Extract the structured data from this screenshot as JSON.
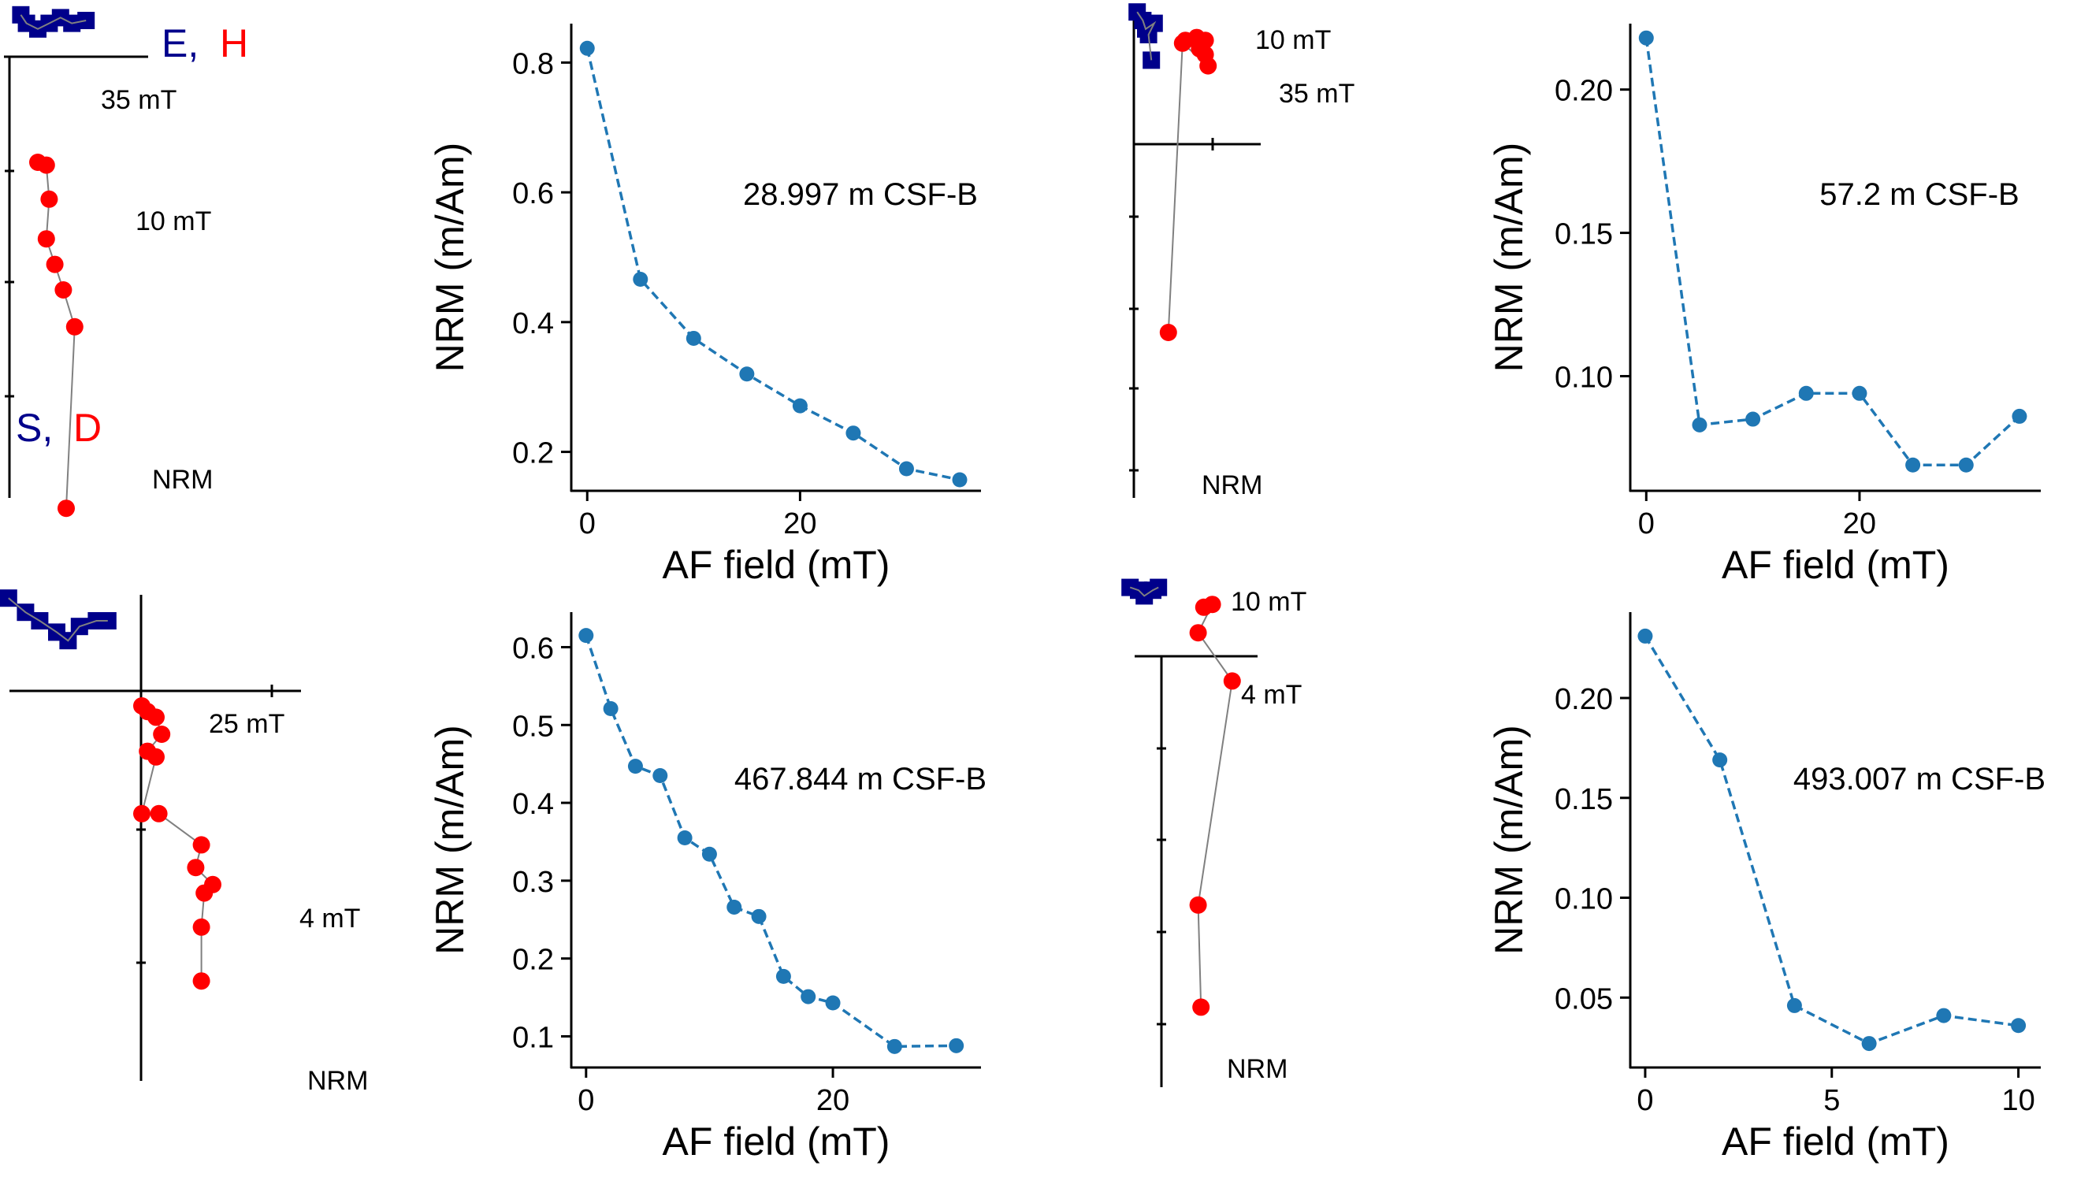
{
  "colors": {
    "demag_line": "#1f77b4",
    "zij_horizontal": "#00008b",
    "zij_vertical": "#ff0000",
    "zij_path": "#808080",
    "axis": "#000000"
  },
  "zijderveld_legend": {
    "horizontal_axis_label": "E,",
    "horizontal_axis_label_2": "H",
    "vertical_axis_label": "S,",
    "vertical_axis_label_2": "D"
  },
  "chart_data": [
    {
      "type": "line",
      "title": "",
      "annotation": "28.997 m CSF-B",
      "xlabel": "AF field (mT)",
      "ylabel": "NRM (m/Am)",
      "x": [
        0,
        5,
        10,
        15,
        20,
        25,
        30,
        35
      ],
      "values": [
        0.822,
        0.466,
        0.375,
        0.32,
        0.271,
        0.229,
        0.174,
        0.157
      ],
      "xlim": [
        -1.5,
        37
      ],
      "ylim": [
        0.14,
        0.86
      ],
      "xticks": [
        0,
        20
      ],
      "yticks": [
        0.2,
        0.4,
        0.6,
        0.8
      ],
      "ytick_labels": [
        "0.2",
        "0.4",
        "0.6",
        "0.8"
      ]
    },
    {
      "type": "line",
      "title": "",
      "annotation": "57.2 m CSF-B",
      "xlabel": "AF field (mT)",
      "ylabel": "NRM (m/Am)",
      "x": [
        0,
        5,
        10,
        15,
        20,
        25,
        30,
        35
      ],
      "values": [
        0.218,
        0.083,
        0.085,
        0.094,
        0.094,
        0.069,
        0.069,
        0.086
      ],
      "xlim": [
        -1.5,
        37
      ],
      "ylim": [
        0.06,
        0.223
      ],
      "xticks": [
        0,
        20
      ],
      "yticks": [
        0.1,
        0.15,
        0.2
      ],
      "ytick_labels": [
        "0.10",
        "0.15",
        "0.20"
      ]
    },
    {
      "type": "line",
      "title": "",
      "annotation": "467.844 m CSF-B",
      "xlabel": "AF field (mT)",
      "ylabel": "NRM (m/Am)",
      "x": [
        0,
        2,
        4,
        6,
        8,
        10,
        12,
        14,
        16,
        18,
        20,
        25,
        30
      ],
      "values": [
        0.615,
        0.521,
        0.447,
        0.435,
        0.355,
        0.334,
        0.266,
        0.254,
        0.177,
        0.151,
        0.143,
        0.087,
        0.088
      ],
      "xlim": [
        -1.2,
        32
      ],
      "ylim": [
        0.06,
        0.645
      ],
      "xticks": [
        0,
        20
      ],
      "yticks": [
        0.1,
        0.2,
        0.3,
        0.4,
        0.5,
        0.6
      ],
      "ytick_labels": [
        "0.1",
        "0.2",
        "0.3",
        "0.4",
        "0.5",
        "0.6"
      ]
    },
    {
      "type": "line",
      "title": "",
      "annotation": "493.007 m CSF-B",
      "xlabel": "AF field (mT)",
      "ylabel": "NRM (m/Am)",
      "x": [
        0,
        2,
        4,
        6,
        8,
        10
      ],
      "values": [
        0.231,
        0.169,
        0.046,
        0.027,
        0.041,
        0.036
      ],
      "xlim": [
        -0.4,
        10.6
      ],
      "ylim": [
        0.015,
        0.243
      ],
      "xticks": [
        0,
        5,
        10
      ],
      "yticks": [
        0.05,
        0.1,
        0.15,
        0.2
      ],
      "ytick_labels": [
        "0.05",
        "0.10",
        "0.15",
        "0.20"
      ]
    }
  ],
  "zijderveld": [
    {
      "step_labels": [
        "35 mT",
        "10 mT",
        "NRM"
      ],
      "horizontal_points": [
        [
          0.04,
          0.03
        ],
        [
          0.06,
          0.06
        ],
        [
          0.1,
          0.08
        ],
        [
          0.14,
          0.06
        ],
        [
          0.18,
          0.04
        ],
        [
          0.22,
          0.06
        ],
        [
          0.27,
          0.05
        ]
      ],
      "vertical_points": [
        [
          0.1,
          0.55
        ],
        [
          0.13,
          0.56
        ],
        [
          0.14,
          0.68
        ],
        [
          0.13,
          0.82
        ],
        [
          0.16,
          0.91
        ],
        [
          0.19,
          1.0
        ],
        [
          0.23,
          1.13
        ],
        [
          0.2,
          1.77
        ]
      ]
    },
    {
      "step_labels": [
        "10 mT",
        "35 mT",
        "NRM"
      ],
      "horizontal_points": [
        [
          0.02,
          0.02
        ],
        [
          0.04,
          0.05
        ],
        [
          0.05,
          0.08
        ],
        [
          0.08,
          0.06
        ],
        [
          0.06,
          0.1
        ],
        [
          0.07,
          0.19
        ]
      ],
      "vertical_points": [
        [
          0.19,
          0.12
        ],
        [
          0.23,
          0.11
        ],
        [
          0.26,
          0.12
        ],
        [
          0.24,
          0.15
        ],
        [
          0.26,
          0.17
        ],
        [
          0.27,
          0.21
        ],
        [
          0.18,
          0.13
        ],
        [
          0.13,
          1.15
        ]
      ]
    },
    {
      "step_labels": [
        "25 mT",
        "4 mT",
        "NRM"
      ],
      "horizontal_points": [
        [
          0.03,
          0.22
        ],
        [
          0.09,
          0.27
        ],
        [
          0.14,
          0.3
        ],
        [
          0.2,
          0.34
        ],
        [
          0.24,
          0.37
        ],
        [
          0.28,
          0.32
        ],
        [
          0.34,
          0.3
        ],
        [
          0.38,
          0.3
        ]
      ],
      "vertical_points": [
        [
          0.5,
          0.6
        ],
        [
          0.52,
          0.62
        ],
        [
          0.55,
          0.64
        ],
        [
          0.57,
          0.7
        ],
        [
          0.52,
          0.76
        ],
        [
          0.55,
          0.78
        ],
        [
          0.5,
          0.98
        ],
        [
          0.56,
          0.98
        ],
        [
          0.71,
          1.09
        ],
        [
          0.69,
          1.17
        ],
        [
          0.75,
          1.23
        ],
        [
          0.72,
          1.26
        ],
        [
          0.71,
          1.38
        ],
        [
          0.71,
          1.57
        ]
      ]
    },
    {
      "step_labels": [
        "10 mT",
        "4 mT",
        "NRM"
      ],
      "horizontal_points": [
        [
          0.02,
          0.01
        ],
        [
          0.05,
          0.02
        ],
        [
          0.07,
          0.04
        ],
        [
          0.1,
          0.02
        ],
        [
          0.12,
          0.01
        ]
      ],
      "vertical_points": [
        [
          0.28,
          0.08
        ],
        [
          0.31,
          0.07
        ],
        [
          0.26,
          0.17
        ],
        [
          0.38,
          0.34
        ],
        [
          0.26,
          1.13
        ],
        [
          0.27,
          1.49
        ]
      ]
    }
  ]
}
